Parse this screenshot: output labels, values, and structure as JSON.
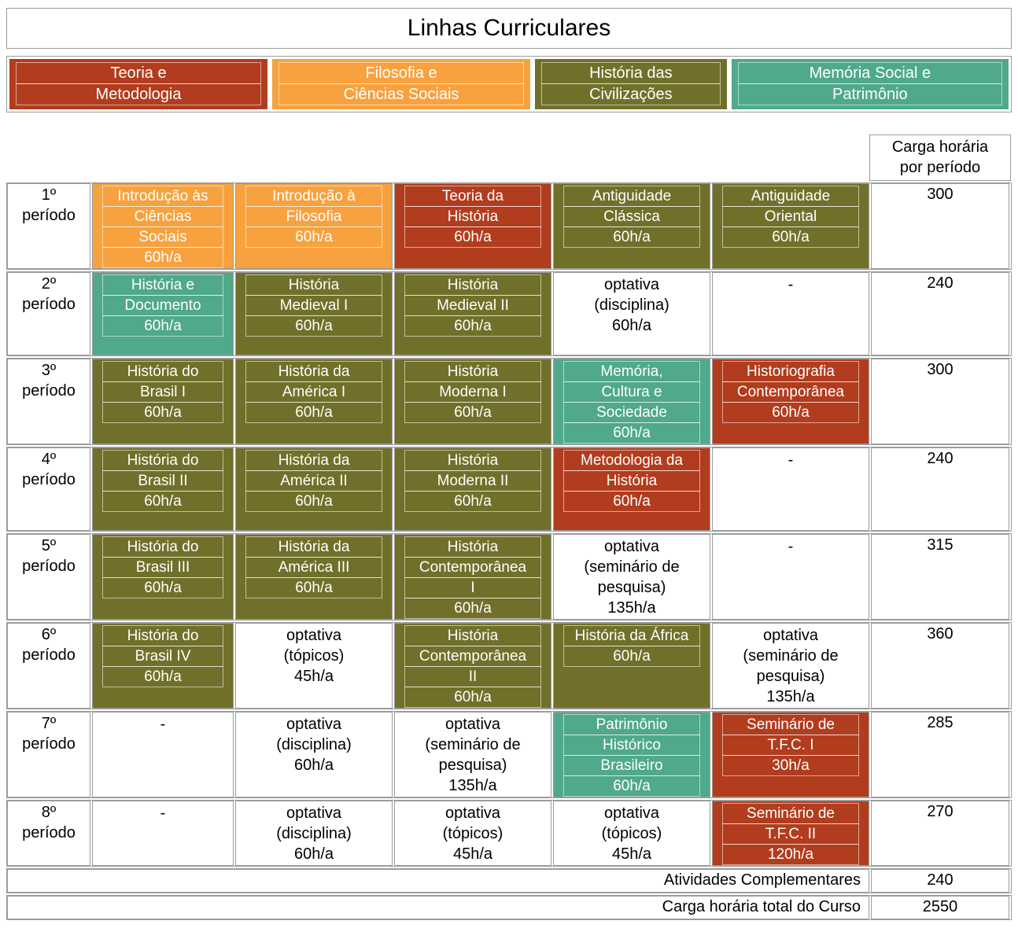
{
  "title": "Linhas Curriculares",
  "colors": {
    "teoria": "#b23c1e",
    "filosofia": "#f7a23f",
    "civilizacoes": "#71702a",
    "memoria": "#4fa98a"
  },
  "legend": [
    {
      "category": "teoria",
      "lines": [
        "Teoria e",
        "Metodologia"
      ],
      "flex": 330
    },
    {
      "category": "filosofia",
      "lines": [
        "Filosofia e",
        "Ciências Sociais"
      ],
      "flex": 330
    },
    {
      "category": "civilizacoes",
      "lines": [
        "História das",
        "Civilizações"
      ],
      "flex": 243
    },
    {
      "category": "memoria",
      "lines": [
        "Memória Social e",
        "Patrimônio"
      ],
      "flex": 355
    }
  ],
  "hours_header_lines": [
    "Carga horária",
    "por período"
  ],
  "rows": [
    {
      "period_lines": [
        "1º",
        "período"
      ],
      "hours": "300",
      "cells": [
        {
          "category": "filosofia",
          "lines": [
            "Introdução às",
            "Ciências",
            "Sociais",
            "60h/a"
          ]
        },
        {
          "category": "filosofia",
          "lines": [
            "Introdução à",
            "Filosofia",
            "60h/a"
          ]
        },
        {
          "category": "teoria",
          "lines": [
            "Teoria da",
            "História",
            "60h/a"
          ]
        },
        {
          "category": "civilizacoes",
          "lines": [
            "Antiguidade",
            "Clássica",
            "60h/a"
          ]
        },
        {
          "category": "civilizacoes",
          "lines": [
            "Antiguidade",
            "Oriental",
            "60h/a"
          ]
        }
      ]
    },
    {
      "period_lines": [
        "2º",
        "período"
      ],
      "hours": "240",
      "cells": [
        {
          "category": "memoria",
          "lines": [
            "História e",
            "Documento",
            "60h/a"
          ]
        },
        {
          "category": "civilizacoes",
          "lines": [
            "História",
            "Medieval I",
            "60h/a"
          ]
        },
        {
          "category": "civilizacoes",
          "lines": [
            "História",
            "Medieval II",
            "60h/a"
          ]
        },
        {
          "category": null,
          "lines": [
            "optativa",
            "(disciplina)",
            "60h/a"
          ]
        },
        {
          "category": null,
          "lines": [
            "-"
          ]
        }
      ]
    },
    {
      "period_lines": [
        "3º",
        "período"
      ],
      "hours": "300",
      "cells": [
        {
          "category": "civilizacoes",
          "lines": [
            "História do",
            "Brasil I",
            "60h/a"
          ]
        },
        {
          "category": "civilizacoes",
          "lines": [
            "História da",
            "América I",
            "60h/a"
          ]
        },
        {
          "category": "civilizacoes",
          "lines": [
            "História",
            "Moderna I",
            "60h/a"
          ]
        },
        {
          "category": "memoria",
          "lines": [
            "Memória,",
            "Cultura e",
            "Sociedade",
            "60h/a"
          ]
        },
        {
          "category": "teoria",
          "lines": [
            "Historiografia",
            "Contemporânea",
            "60h/a"
          ]
        }
      ]
    },
    {
      "period_lines": [
        "4º",
        "período"
      ],
      "hours": "240",
      "cells": [
        {
          "category": "civilizacoes",
          "lines": [
            "História do",
            "Brasil II",
            "60h/a"
          ]
        },
        {
          "category": "civilizacoes",
          "lines": [
            "História da",
            "América II",
            "60h/a"
          ]
        },
        {
          "category": "civilizacoes",
          "lines": [
            "História",
            "Moderna II",
            "60h/a"
          ]
        },
        {
          "category": "teoria",
          "lines": [
            "Metodologia da",
            "História",
            "60h/a"
          ]
        },
        {
          "category": null,
          "lines": [
            "-"
          ]
        }
      ]
    },
    {
      "period_lines": [
        "5º",
        "período"
      ],
      "hours": "315",
      "cells": [
        {
          "category": "civilizacoes",
          "lines": [
            "História do",
            "Brasil III",
            "60h/a"
          ]
        },
        {
          "category": "civilizacoes",
          "lines": [
            "História da",
            "América III",
            "60h/a"
          ]
        },
        {
          "category": "civilizacoes",
          "lines": [
            "História",
            "Contemporânea",
            "I",
            "60h/a"
          ]
        },
        {
          "category": null,
          "lines": [
            "optativa",
            "(seminário de",
            "pesquisa)",
            "135h/a"
          ]
        },
        {
          "category": null,
          "lines": [
            "-"
          ]
        }
      ]
    },
    {
      "period_lines": [
        "6º",
        "período"
      ],
      "hours": "360",
      "cells": [
        {
          "category": "civilizacoes",
          "lines": [
            "História do",
            "Brasil IV",
            "60h/a"
          ]
        },
        {
          "category": null,
          "lines": [
            "optativa",
            "(tópicos)",
            "45h/a"
          ]
        },
        {
          "category": "civilizacoes",
          "lines": [
            "História",
            "Contemporânea",
            "II",
            "60h/a"
          ]
        },
        {
          "category": "civilizacoes",
          "lines": [
            "História da África",
            "60h/a"
          ]
        },
        {
          "category": null,
          "lines": [
            "optativa",
            "(seminário de",
            "pesquisa)",
            "135h/a"
          ]
        }
      ]
    },
    {
      "period_lines": [
        "7º",
        "período"
      ],
      "hours": "285",
      "cells": [
        {
          "category": null,
          "lines": [
            "-"
          ]
        },
        {
          "category": null,
          "lines": [
            "optativa",
            "(disciplina)",
            "60h/a"
          ]
        },
        {
          "category": null,
          "lines": [
            "optativa",
            "(seminário de",
            "pesquisa)",
            "135h/a"
          ]
        },
        {
          "category": "memoria",
          "lines": [
            "Patrimônio",
            "Histórico",
            "Brasileiro",
            "60h/a"
          ]
        },
        {
          "category": "teoria",
          "lines": [
            "Seminário de",
            "T.F.C. I",
            "30h/a"
          ]
        }
      ]
    },
    {
      "period_lines": [
        "8º",
        "período"
      ],
      "hours": "270",
      "compact": true,
      "cells": [
        {
          "category": null,
          "lines": [
            "-"
          ]
        },
        {
          "category": null,
          "lines": [
            "optativa",
            "(disciplina)",
            "60h/a"
          ]
        },
        {
          "category": null,
          "lines": [
            "optativa",
            "(tópicos)",
            "45h/a"
          ]
        },
        {
          "category": null,
          "lines": [
            "optativa",
            "(tópicos)",
            "45h/a"
          ]
        },
        {
          "category": "teoria",
          "lines": [
            "Seminário de",
            "T.F.C. II",
            "120h/a"
          ]
        }
      ]
    }
  ],
  "footer": [
    {
      "label": "Atividades Complementares",
      "value": "240"
    },
    {
      "label": "Carga horária total do Curso",
      "value": "2550"
    }
  ]
}
